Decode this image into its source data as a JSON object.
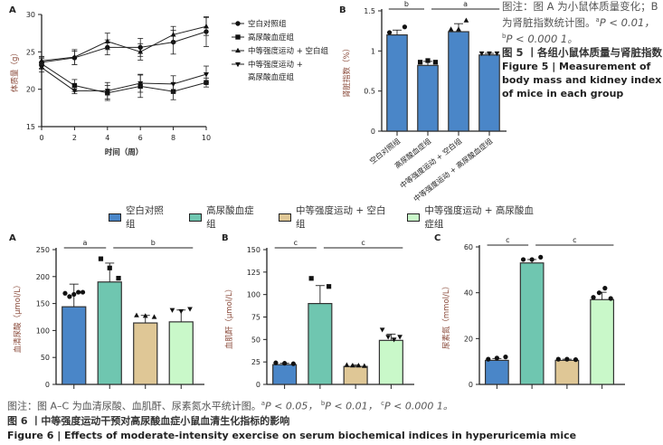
{
  "figure5": {
    "note_line": "图注：图 A 为小鼠体质量变化；B 为肾脏指数统计图。",
    "note_sig": [
      {
        "sup": "a",
        "text": "P < 0.01，"
      },
      {
        "sup": "b",
        "text": "P < 0.000 1。"
      }
    ],
    "title_cn": "图 5 丨各组小鼠体质量与肾脏指数",
    "title_en": "Figure 5 | Measurement of body mass and kidney index of mice in each group"
  },
  "figure6": {
    "legend": [
      {
        "label": "空白对照组",
        "color": "#4a86c8"
      },
      {
        "label": "高尿酸血症组",
        "color": "#6fc6b0"
      },
      {
        "label": "中等强度运动 + 空白组",
        "color": "#dfc796"
      },
      {
        "label": "中等强度运动 + 高尿酸血症组",
        "color": "#c9f8c9"
      }
    ],
    "note": "图注：图 A–C 为血清尿酸、血肌酐、尿素氮水平统计图。",
    "note_sig": [
      {
        "sup": "a",
        "text": "P < 0.05，"
      },
      {
        "sup": "b",
        "text": "P < 0.01，"
      },
      {
        "sup": "c",
        "text": "P < 0.000 1。"
      }
    ],
    "title_cn": "图 6 丨中等强度运动干预对高尿酸血症小鼠血清生化指标的影响",
    "title_en": "Figure 6 | Effects of moderate-intensity exercise on serum biochemical indices in hyperuricemia mice"
  },
  "chart_data": [
    {
      "id": "fig5A",
      "panel": "A",
      "type": "line",
      "title": "",
      "xlabel": "时间（周）",
      "ylabel": "体质量（g）",
      "x": [
        0,
        2,
        4,
        6,
        8,
        10
      ],
      "xlim": [
        0,
        10
      ],
      "ylim": [
        15,
        30
      ],
      "xticks": [
        0,
        2,
        4,
        6,
        8,
        10
      ],
      "yticks": [
        15,
        20,
        25,
        30
      ],
      "legend_position": "right",
      "series": [
        {
          "name": "空白对照组",
          "marker": "circle",
          "values": [
            23.6,
            24.2,
            25.6,
            25.6,
            26.3,
            27.7
          ],
          "errors": [
            0.8,
            0.9,
            1.0,
            1.2,
            1.6,
            2.0
          ]
        },
        {
          "name": "高尿酸血症组",
          "marker": "square",
          "values": [
            23.4,
            20.5,
            19.5,
            20.4,
            19.7,
            20.9
          ],
          "errors": [
            0.7,
            0.8,
            1.0,
            1.5,
            1.1,
            0.6
          ]
        },
        {
          "name": "中等强度运动 + 空白组",
          "marker": "triangle-up",
          "values": [
            23.8,
            24.3,
            26.4,
            25.0,
            27.3,
            28.4
          ],
          "errors": [
            0.5,
            1.0,
            1.1,
            1.1,
            1.1,
            1.2
          ]
        },
        {
          "name": "中等强度运动 + 高尿酸血症组",
          "marker": "triangle-down",
          "values": [
            22.9,
            19.8,
            19.8,
            20.8,
            20.7,
            22.0
          ],
          "errors": [
            0.6,
            0.4,
            1.1,
            1.2,
            1.1,
            1.1
          ]
        }
      ]
    },
    {
      "id": "fig5B",
      "panel": "B",
      "type": "bar",
      "title": "",
      "xlabel": "",
      "ylabel": "肾脏指数（%）",
      "categories": [
        "空白对照组",
        "高尿酸血症组",
        "中等强度运动 + 空白组",
        "中等强度运动 + 高尿酸血症组"
      ],
      "values": [
        1.2,
        0.82,
        1.24,
        0.95
      ],
      "errors": [
        0.06,
        0.05,
        0.1,
        0.02
      ],
      "points": [
        [
          1.23,
          1.3
        ],
        [
          0.86,
          0.88,
          0.86
        ],
        [
          1.27,
          1.27,
          1.38
        ],
        [
          0.97,
          0.97,
          0.97
        ]
      ],
      "markers": [
        "circle",
        "square",
        "triangle-up",
        "triangle-down"
      ],
      "color": "#4a86c8",
      "ylim": [
        0,
        1.5
      ],
      "yticks": [
        0,
        0.5,
        1.0,
        1.5
      ],
      "significance": [
        {
          "from": 0,
          "to": 1,
          "label": "b"
        },
        {
          "from": 1,
          "to": 3,
          "label": "a"
        }
      ]
    },
    {
      "id": "fig6A",
      "panel": "A",
      "type": "bar",
      "title": "",
      "xlabel": "",
      "ylabel": "血清尿酸（μmol/L）",
      "categories": [
        "空白对照组",
        "高尿酸血症组",
        "中等强度运动 + 空白组",
        "中等强度运动 + 高尿酸血症组"
      ],
      "values": [
        144,
        190,
        114,
        116
      ],
      "errors": [
        42,
        35,
        14,
        22
      ],
      "points": [
        [
          169,
          163,
          167,
          171,
          171
        ],
        [
          233,
          216,
          197
        ],
        [
          128,
          127,
          125
        ],
        [
          138,
          136,
          140
        ]
      ],
      "markers": [
        "circle",
        "square",
        "triangle-up",
        "triangle-down"
      ],
      "ylim": [
        0,
        250
      ],
      "yticks": [
        0,
        50,
        100,
        150,
        200,
        250
      ],
      "significance": [
        {
          "from": 0,
          "to": 1,
          "label": "a"
        },
        {
          "from": 1,
          "to": 3,
          "label": "b"
        }
      ]
    },
    {
      "id": "fig6B",
      "panel": "B",
      "type": "bar",
      "title": "",
      "xlabel": "",
      "ylabel": "血肌酐（μmol/L）",
      "categories": [
        "空白对照组",
        "高尿酸血症组",
        "中等强度运动 + 空白组",
        "中等强度运动 + 高尿酸血症组"
      ],
      "values": [
        22,
        90,
        20,
        49
      ],
      "errors": [
        1.5,
        20,
        1.5,
        7
      ],
      "points": [
        [
          24,
          23.5,
          23
        ],
        [
          118,
          109
        ],
        [
          21.5,
          21,
          21,
          20.5
        ],
        [
          61,
          53,
          50,
          53
        ]
      ],
      "markers": [
        "circle",
        "square",
        "triangle-up",
        "triangle-down"
      ],
      "ylim": [
        0,
        150
      ],
      "yticks": [
        0,
        25,
        50,
        75,
        100,
        125,
        150
      ],
      "significance": [
        {
          "from": 0,
          "to": 1,
          "label": "c"
        },
        {
          "from": 1,
          "to": 3,
          "label": "c"
        }
      ]
    },
    {
      "id": "fig6C",
      "panel": "C",
      "type": "bar",
      "title": "",
      "xlabel": "",
      "ylabel": "尿素氮（mmol/L）",
      "categories": [
        "空白对照组",
        "高尿酸血症组",
        "中等强度运动 + 空白组",
        "中等强度运动 + 高尿酸血症组"
      ],
      "values": [
        10.5,
        53,
        10.5,
        37
      ],
      "errors": [
        0.8,
        1.5,
        0.5,
        3.2
      ],
      "points": [
        [
          11,
          11.5,
          12
        ],
        [
          54.5,
          54.5,
          55.5
        ],
        [
          11,
          11,
          10.8
        ],
        [
          38,
          40,
          42,
          37.5
        ]
      ],
      "markers": [
        "circle",
        "circle",
        "circle",
        "circle"
      ],
      "ylim": [
        0,
        60
      ],
      "yticks": [
        0,
        20,
        40,
        60
      ],
      "significance": [
        {
          "from": 0,
          "to": 1,
          "label": "c"
        },
        {
          "from": 1,
          "to": 3,
          "label": "c"
        }
      ]
    }
  ]
}
